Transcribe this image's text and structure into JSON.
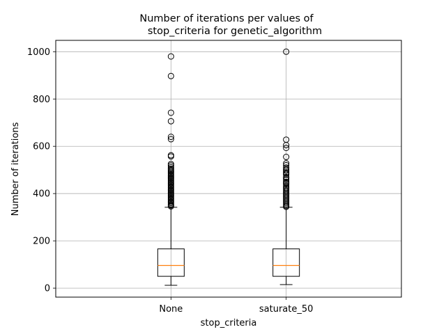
{
  "chart_data": {
    "type": "box",
    "title_lines": [
      "Number of iterations per values of",
      "stop_criteria for genetic_algorithm"
    ],
    "xlabel": "stop_criteria",
    "ylabel": "Number of iterations",
    "categories": [
      "None",
      "saturate_50"
    ],
    "ylim": [
      -38,
      1048
    ],
    "yticks": [
      0,
      200,
      400,
      600,
      800,
      1000
    ],
    "grid": true,
    "median_color": "#ff7f0e",
    "series": [
      {
        "category": "None",
        "whisker_low": 12,
        "q1": 50,
        "median": 96,
        "q3": 166,
        "whisker_high": 342,
        "outliers": [
          980,
          897,
          742,
          706,
          640,
          630,
          562,
          557,
          525,
          519,
          512,
          505,
          500,
          495,
          490,
          485,
          480,
          475,
          470,
          465,
          460,
          455,
          450,
          445,
          440,
          435,
          430,
          425,
          420,
          415,
          410,
          405,
          400,
          395,
          390,
          385,
          380,
          375,
          370,
          365,
          360,
          355,
          350,
          346
        ]
      },
      {
        "category": "saturate_50",
        "whisker_low": 15,
        "q1": 50,
        "median": 96,
        "q3": 166,
        "whisker_high": 342,
        "outliers": [
          1000,
          628,
          605,
          593,
          555,
          528,
          520,
          510,
          503,
          497,
          490,
          485,
          480,
          470,
          465,
          458,
          450,
          445,
          440,
          432,
          425,
          420,
          414,
          408,
          402,
          396,
          390,
          384,
          378,
          372,
          366,
          360,
          354,
          348,
          344
        ]
      }
    ]
  }
}
